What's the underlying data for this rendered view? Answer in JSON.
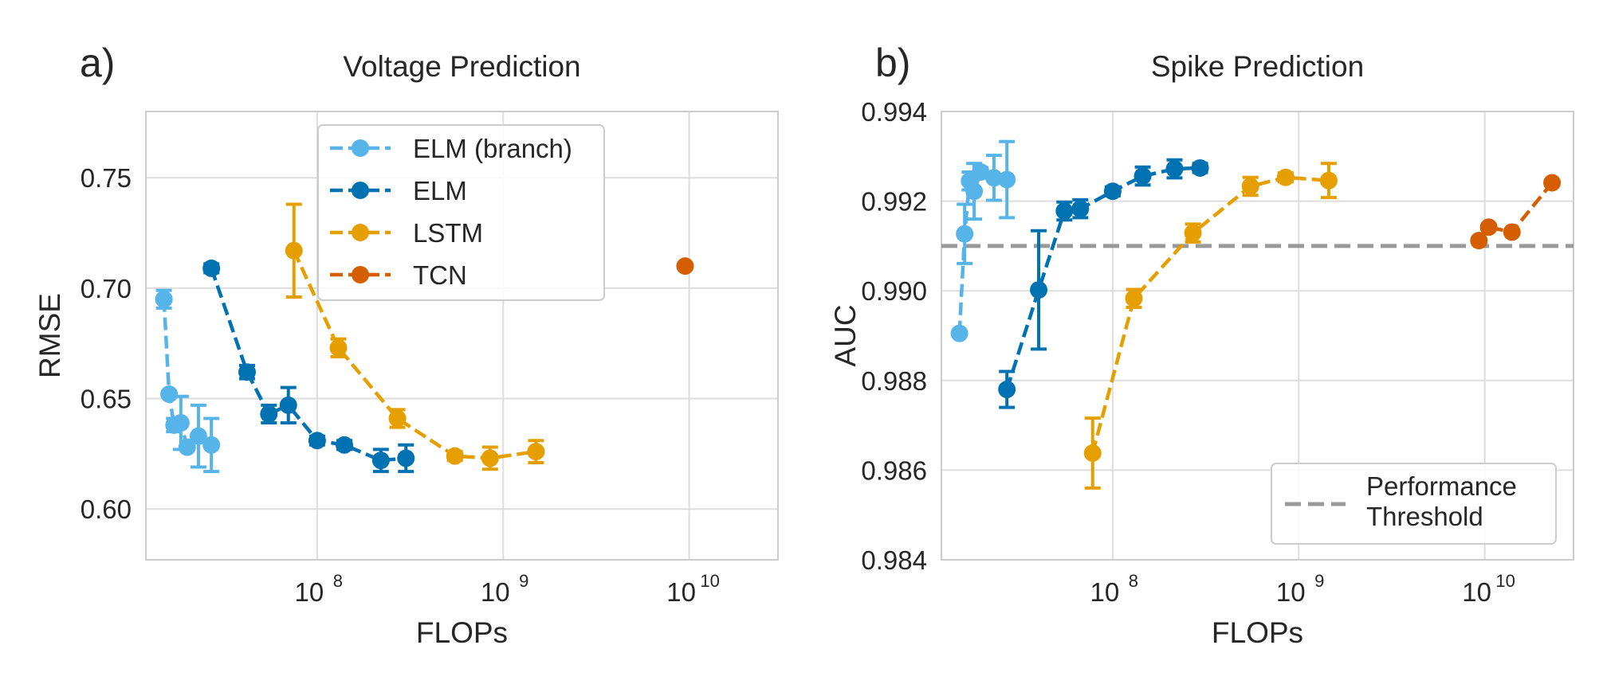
{
  "colors": {
    "ELM (branch)": "#56b4e9",
    "ELM": "#0072b2",
    "LSTM": "#e69f00",
    "TCN": "#d55e00",
    "threshold": "#999999",
    "grid": "#dddddd",
    "frame": "#cccccc"
  },
  "chart_data": [
    {
      "panel_label": "a)",
      "type": "line",
      "title": "Voltage Prediction",
      "xlabel": "FLOPs",
      "ylabel": "RMSE",
      "xscale": "log",
      "xlim": [
        12000000,
        30000000000
      ],
      "ylim": [
        0.577,
        0.78
      ],
      "yticks": [
        "0.60",
        "0.65",
        "0.70",
        "0.75"
      ],
      "xticks": [
        {
          "base": "10",
          "exp": "8"
        },
        {
          "base": "10",
          "exp": "9"
        },
        {
          "base": "10",
          "exp": "10"
        }
      ],
      "grid": true,
      "legend_position": "upper center",
      "legend": [
        "ELM (branch)",
        "ELM",
        "LSTM",
        "TCN"
      ],
      "series": [
        {
          "name": "ELM (branch)",
          "points": [
            {
              "x": 15000000,
              "y": 0.695,
              "err": 0.004
            },
            {
              "x": 16000000,
              "y": 0.652,
              "err": 0
            },
            {
              "x": 17000000,
              "y": 0.638,
              "err": 0.003
            },
            {
              "x": 18500000,
              "y": 0.639,
              "err": 0.012
            },
            {
              "x": 20000000,
              "y": 0.628,
              "err": 0
            },
            {
              "x": 23000000,
              "y": 0.633,
              "err": 0.014
            },
            {
              "x": 27000000,
              "y": 0.629,
              "err": 0.012
            }
          ]
        },
        {
          "name": "ELM",
          "points": [
            {
              "x": 27000000,
              "y": 0.709,
              "err": 0.002
            },
            {
              "x": 42000000,
              "y": 0.662,
              "err": 0.003
            },
            {
              "x": 55000000,
              "y": 0.643,
              "err": 0.004
            },
            {
              "x": 70000000,
              "y": 0.647,
              "err": 0.008
            },
            {
              "x": 100000000,
              "y": 0.631,
              "err": 0.002
            },
            {
              "x": 140000000,
              "y": 0.629,
              "err": 0.002
            },
            {
              "x": 220000000,
              "y": 0.622,
              "err": 0.005
            },
            {
              "x": 300000000,
              "y": 0.623,
              "err": 0.006
            }
          ]
        },
        {
          "name": "LSTM",
          "points": [
            {
              "x": 75000000,
              "y": 0.717,
              "err": 0.021
            },
            {
              "x": 130000000,
              "y": 0.673,
              "err": 0.004
            },
            {
              "x": 270000000,
              "y": 0.641,
              "err": 0.004
            },
            {
              "x": 550000000,
              "y": 0.624,
              "err": 0.002
            },
            {
              "x": 850000000,
              "y": 0.623,
              "err": 0.005
            },
            {
              "x": 1500000000,
              "y": 0.626,
              "err": 0.005
            }
          ]
        },
        {
          "name": "TCN",
          "points": [
            {
              "x": 9500000000,
              "y": 0.71,
              "err": 0
            }
          ]
        }
      ]
    },
    {
      "panel_label": "b)",
      "type": "line",
      "title": "Spike Prediction",
      "xlabel": "FLOPs",
      "ylabel": "AUC",
      "xscale": "log",
      "xlim": [
        12000000,
        30000000000
      ],
      "ylim": [
        0.984,
        0.994
      ],
      "yticks": [
        "0.984",
        "0.986",
        "0.988",
        "0.990",
        "0.992",
        "0.994"
      ],
      "xticks": [
        {
          "base": "10",
          "exp": "8"
        },
        {
          "base": "10",
          "exp": "9"
        },
        {
          "base": "10",
          "exp": "10"
        }
      ],
      "grid": true,
      "threshold": 0.991,
      "legend_position": "lower right",
      "legend": [
        "Performance",
        "Threshold"
      ],
      "series": [
        {
          "name": "ELM (branch)",
          "points": [
            {
              "x": 15000000,
              "y": 0.98905,
              "err": 0
            },
            {
              "x": 16000000,
              "y": 0.99127,
              "err": 0.00066
            },
            {
              "x": 17000000,
              "y": 0.99245,
              "err": 0.0002
            },
            {
              "x": 18000000,
              "y": 0.99222,
              "err": 0.00062
            },
            {
              "x": 19500000,
              "y": 0.99265,
              "err": 0.0001
            },
            {
              "x": 23000000,
              "y": 0.99252,
              "err": 0.0005
            },
            {
              "x": 27000000,
              "y": 0.99248,
              "err": 0.00085
            }
          ]
        },
        {
          "name": "ELM",
          "points": [
            {
              "x": 27000000,
              "y": 0.9878,
              "err": 0.0004
            },
            {
              "x": 40000000,
              "y": 0.99002,
              "err": 0.00132
            },
            {
              "x": 55000000,
              "y": 0.99178,
              "err": 0.0002
            },
            {
              "x": 67000000,
              "y": 0.99183,
              "err": 0.0002
            },
            {
              "x": 100000000,
              "y": 0.99222,
              "err": 0.0001
            },
            {
              "x": 145000000,
              "y": 0.99256,
              "err": 0.0002
            },
            {
              "x": 215000000,
              "y": 0.99272,
              "err": 0.0002
            },
            {
              "x": 295000000,
              "y": 0.99274,
              "err": 0.0001
            }
          ]
        },
        {
          "name": "LSTM",
          "points": [
            {
              "x": 78000000,
              "y": 0.98638,
              "err": 0.00078
            },
            {
              "x": 130000000,
              "y": 0.98983,
              "err": 0.0002
            },
            {
              "x": 270000000,
              "y": 0.99129,
              "err": 0.0002
            },
            {
              "x": 550000000,
              "y": 0.99233,
              "err": 0.0002
            },
            {
              "x": 850000000,
              "y": 0.99253,
              "err": 0.0001
            },
            {
              "x": 1450000000,
              "y": 0.99246,
              "err": 0.00038
            }
          ]
        },
        {
          "name": "TCN",
          "points": [
            {
              "x": 9300000000,
              "y": 0.99112,
              "err": 0
            },
            {
              "x": 10500000000,
              "y": 0.99142,
              "err": 0
            },
            {
              "x": 14000000000,
              "y": 0.99131,
              "err": 0
            },
            {
              "x": 23000000000,
              "y": 0.99241,
              "err": 0
            }
          ]
        }
      ]
    }
  ]
}
